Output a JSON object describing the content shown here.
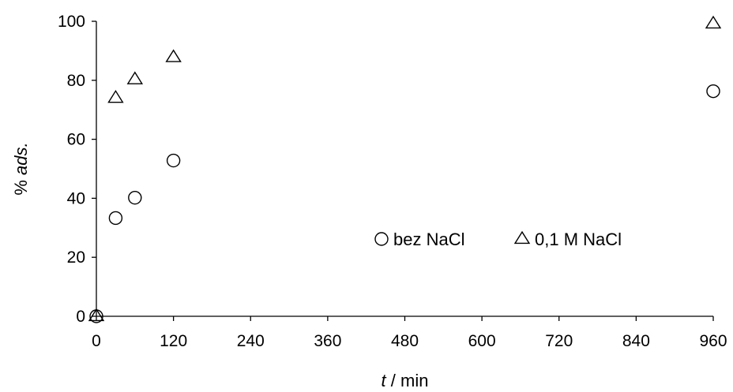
{
  "chart_data": {
    "type": "scatter",
    "xlabel": {
      "italic": "t",
      "rest": " / min"
    },
    "ylabel": {
      "plain": "% ",
      "italic": "ads."
    },
    "xlim": [
      0,
      960
    ],
    "ylim": [
      0,
      100
    ],
    "x_ticks": [
      0,
      120,
      240,
      360,
      480,
      600,
      720,
      840,
      960
    ],
    "y_ticks": [
      0,
      20,
      40,
      60,
      80,
      100
    ],
    "grid": false,
    "legend_position": "lower-right",
    "series": [
      {
        "name": "bez NaCl",
        "marker": "circle",
        "x": [
          0,
          30,
          60,
          120,
          960
        ],
        "y": [
          0,
          33.3,
          40.2,
          52.8,
          76.3
        ]
      },
      {
        "name": "0,1 M NaCl",
        "marker": "triangle",
        "x": [
          0,
          30,
          60,
          120,
          960
        ],
        "y": [
          0,
          74.0,
          80.3,
          87.8,
          99.2
        ]
      }
    ]
  }
}
